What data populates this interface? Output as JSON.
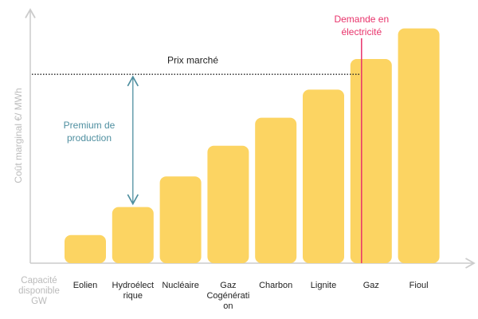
{
  "chart_data": {
    "type": "bar",
    "y_label": "Coût marginal €/ MWh",
    "x_label": "Capacité disponible GW",
    "categories": [
      "Eolien",
      "Hydroélectrique",
      "Nucléaire",
      "Gaz Cogénération",
      "Charbon",
      "Lignite",
      "Gaz",
      "Fioul"
    ],
    "values": [
      11,
      22,
      34,
      46,
      57,
      68,
      80,
      92
    ],
    "color": "#fcd462",
    "ylim": [
      0,
      100
    ],
    "market_price": {
      "label": "Prix marché",
      "value": 74
    },
    "premium": {
      "label": "Premium de production"
    },
    "demand": {
      "label": "Demande en électricité",
      "color": "#e8336b"
    }
  }
}
